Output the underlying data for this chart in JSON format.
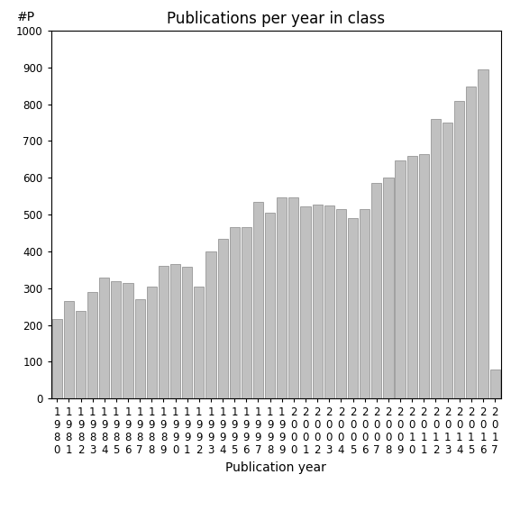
{
  "title": "Publications per year in class",
  "xlabel": "Publication year",
  "ylabel": "#P",
  "years": [
    "1980",
    "1981",
    "1982",
    "1983",
    "1984",
    "1985",
    "1986",
    "1987",
    "1988",
    "1989",
    "1990",
    "1991",
    "1992",
    "1993",
    "1994",
    "1995",
    "1996",
    "1997",
    "1998",
    "1999",
    "2000",
    "2001",
    "2002",
    "2003",
    "2004",
    "2005",
    "2006",
    "2007",
    "2008",
    "2009",
    "2010",
    "2011",
    "2012",
    "2013",
    "2014",
    "2015",
    "2016",
    "2017"
  ],
  "values": [
    215,
    265,
    238,
    290,
    328,
    318,
    315,
    270,
    305,
    360,
    365,
    358,
    305,
    400,
    435,
    465,
    465,
    535,
    505,
    548,
    548,
    522,
    527,
    525,
    515,
    490,
    515,
    585,
    600,
    648,
    660,
    665,
    760,
    750,
    810,
    848,
    895,
    80
  ],
  "bar_color": "#c0c0c0",
  "bar_edge_color": "#888888",
  "background_color": "#ffffff",
  "ylim": [
    0,
    1000
  ],
  "yticks": [
    0,
    100,
    200,
    300,
    400,
    500,
    600,
    700,
    800,
    900,
    1000
  ],
  "title_fontsize": 12,
  "axis_label_fontsize": 10,
  "tick_fontsize": 8.5
}
